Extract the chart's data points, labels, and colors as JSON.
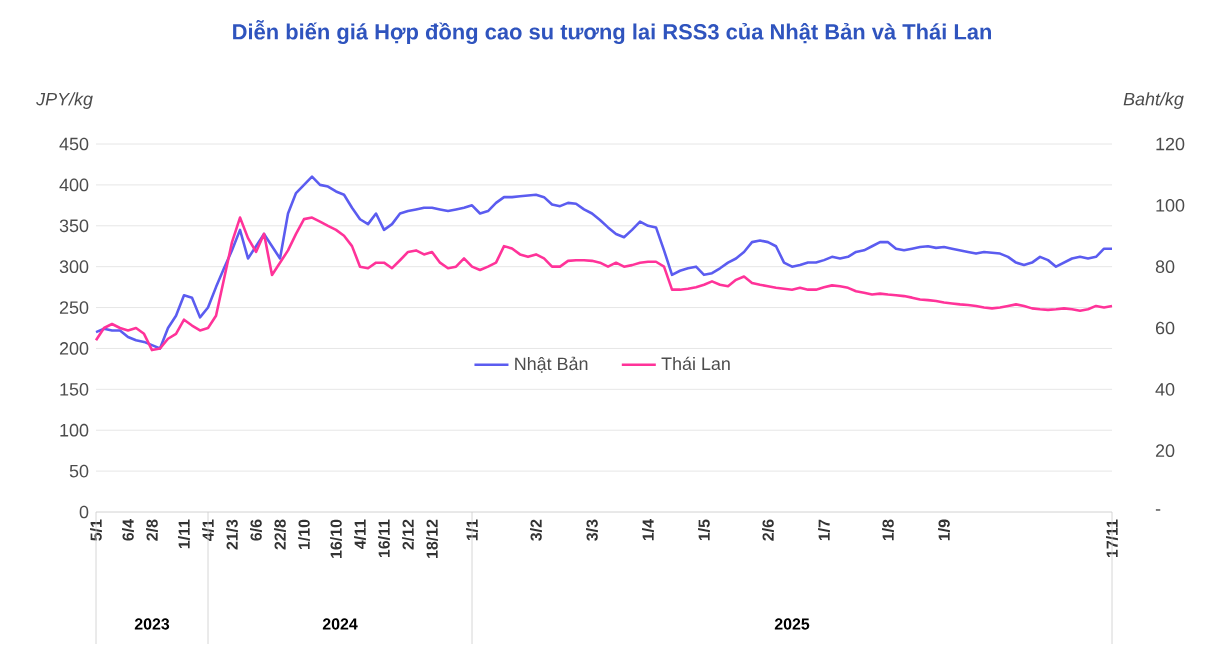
{
  "chart_data": {
    "type": "line",
    "title": "Diễn biến giá Hợp đồng cao su tương lai RSS3 của Nhật Bản và Thái Lan",
    "ylabel": "JPY/kg",
    "y2label": "Baht/kg",
    "categories": [
      "5/1",
      null,
      null,
      null,
      "6/4",
      null,
      null,
      "2/8",
      null,
      null,
      null,
      "1/11",
      null,
      null,
      "4/1",
      null,
      null,
      "21/3",
      null,
      null,
      "6/6",
      null,
      null,
      "22/8",
      null,
      null,
      "1/10",
      null,
      null,
      null,
      "16/10",
      null,
      null,
      "4/11",
      null,
      null,
      "16/11",
      null,
      null,
      "2/12",
      null,
      null,
      "18/12",
      null,
      null,
      null,
      null,
      "1/1",
      null,
      null,
      null,
      null,
      null,
      null,
      null,
      "3/2",
      null,
      null,
      null,
      null,
      null,
      null,
      "3/3",
      null,
      null,
      null,
      null,
      null,
      null,
      "1/4",
      null,
      null,
      null,
      null,
      null,
      null,
      "1/5",
      null,
      null,
      null,
      null,
      null,
      null,
      null,
      "2/6",
      null,
      null,
      null,
      null,
      null,
      null,
      "1/7",
      null,
      null,
      null,
      null,
      null,
      null,
      null,
      "1/8",
      null,
      null,
      null,
      null,
      null,
      null,
      "1/9",
      null,
      null,
      null,
      null,
      null,
      null,
      null,
      null,
      null,
      null,
      null,
      null,
      null,
      null,
      null,
      null,
      null,
      null,
      null,
      null,
      "17/11"
    ],
    "series": [
      {
        "name": "Nhật Bản",
        "color": "#5b5cf0",
        "values": [
          220,
          224,
          222,
          222,
          214,
          210,
          208,
          204,
          200,
          225,
          240,
          265,
          262,
          238,
          250,
          275,
          298,
          320,
          345,
          310,
          325,
          340,
          325,
          310,
          365,
          390,
          400,
          410,
          400,
          398,
          392,
          388,
          372,
          358,
          352,
          365,
          345,
          352,
          365,
          368,
          370,
          372,
          372,
          370,
          368,
          370,
          372,
          375,
          365,
          368,
          378,
          385,
          385,
          386,
          387,
          388,
          385,
          376,
          374,
          378,
          377,
          370,
          365,
          357,
          348,
          340,
          336,
          345,
          355,
          350,
          348,
          320,
          290,
          295,
          298,
          300,
          290,
          292,
          298,
          305,
          310,
          318,
          330,
          332,
          330,
          325,
          305,
          300,
          302,
          305,
          305,
          308,
          312,
          310,
          312,
          318,
          320,
          325,
          330,
          330,
          322,
          320,
          322,
          324,
          325,
          323,
          324,
          322,
          320,
          318,
          316,
          318,
          317,
          316,
          312,
          305,
          302,
          305,
          312,
          308,
          300,
          305,
          310,
          312,
          310,
          312,
          322,
          322
        ]
      },
      {
        "name": "Thái Lan",
        "color": "#ff3399",
        "axis": "y2",
        "values": [
          56,
          60,
          61.3,
          60,
          59.2,
          60,
          58.1,
          52.8,
          53.3,
          56.5,
          58.1,
          62.7,
          60.8,
          59.2,
          60,
          64,
          76,
          88,
          96,
          89.3,
          84.8,
          90.7,
          77.3,
          81.3,
          85.3,
          90.7,
          95.5,
          96,
          94.7,
          93.3,
          92,
          90.1,
          86.7,
          80,
          79.5,
          81.3,
          81.3,
          79.5,
          82.1,
          84.8,
          85.3,
          84,
          84.8,
          81.3,
          79.5,
          80,
          82.7,
          80,
          78.9,
          80,
          81.3,
          86.7,
          85.9,
          84,
          83.2,
          84,
          82.7,
          80,
          80,
          81.9,
          82.1,
          82.1,
          81.9,
          81.3,
          80,
          81.3,
          80,
          80.5,
          81.3,
          81.6,
          81.6,
          80,
          72.5,
          72.5,
          72.8,
          73.3,
          74.1,
          75.2,
          74.1,
          73.6,
          75.7,
          76.8,
          74.7,
          74.1,
          73.6,
          73.1,
          72.8,
          72.5,
          73.1,
          72.5,
          72.5,
          73.3,
          73.9,
          73.6,
          73.1,
          72,
          71.5,
          70.9,
          71.2,
          70.9,
          70.7,
          70.4,
          69.9,
          69.3,
          69.1,
          68.8,
          68.3,
          68,
          67.7,
          67.5,
          67.2,
          66.7,
          66.4,
          66.7,
          67.2,
          67.7,
          67.2,
          66.4,
          66.1,
          65.9,
          66.1,
          66.4,
          66.1,
          65.6,
          66.1,
          67.2,
          66.7,
          67.2
        ]
      }
    ],
    "ylim": [
      0,
      450
    ],
    "yticks": [
      0,
      50,
      100,
      150,
      200,
      250,
      300,
      350,
      400,
      450
    ],
    "y2lim": [
      0,
      120
    ],
    "y2ticks": [
      {
        "value": 0,
        "label": "-"
      },
      20,
      40,
      60,
      80,
      100,
      120
    ],
    "annotations": [
      "2023",
      "2024",
      "2025"
    ],
    "grid": "y",
    "legend": "center",
    "marker": "none",
    "line_style": "solid"
  }
}
